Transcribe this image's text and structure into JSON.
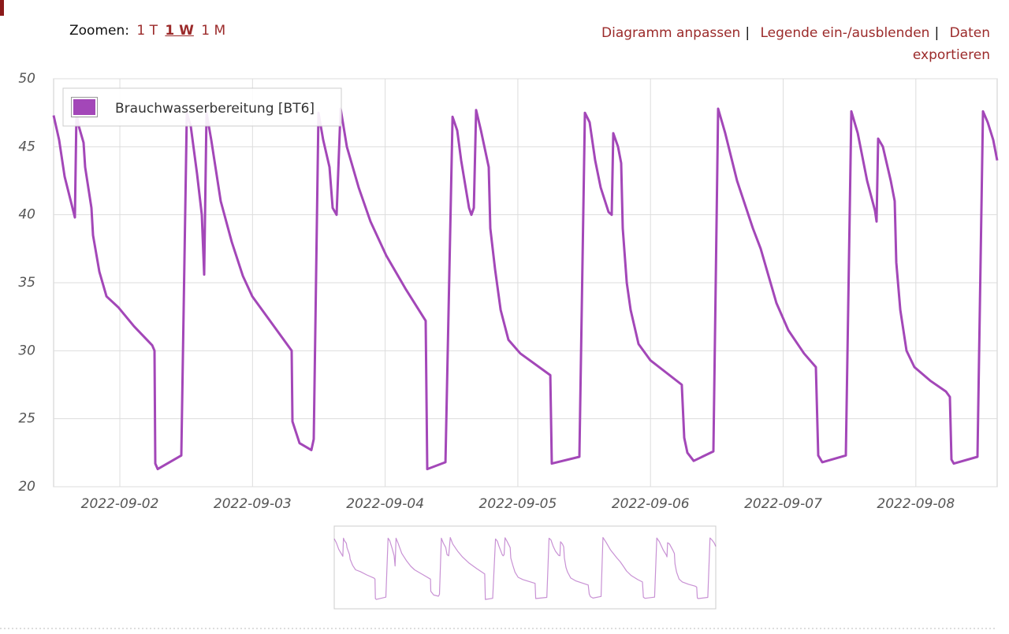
{
  "toolbar": {
    "zoom_label": "Zoomen:",
    "zoom_options": [
      "1 T",
      "1 W",
      "1 M"
    ],
    "links": [
      "Diagramm anpassen",
      "Legende ein-/ausblenden",
      "Daten exportieren"
    ],
    "separator": "|"
  },
  "chart_data": {
    "type": "line",
    "x": [
      "2022-09-01 12:01",
      "2022-09-01 13:01",
      "2022-09-01 14:01",
      "2022-09-01 15:52",
      "2022-09-01 16:09",
      "2022-09-01 16:35",
      "2022-09-01 17:26",
      "2022-09-01 17:43",
      "2022-09-01 18:52",
      "2022-09-01 19:09",
      "2022-09-01 20:18",
      "2022-09-01 21:35",
      "2022-09-01 23:43",
      "2022-09-02 02:34",
      "2022-09-02 05:51",
      "2022-09-02 06:16",
      "2022-09-02 06:25",
      "2022-09-02 06:51",
      "2022-09-02 11:07",
      "2022-09-02 12:07",
      "2022-09-02 12:50",
      "2022-09-02 13:58",
      "2022-09-02 14:50",
      "2022-09-02 15:15",
      "2022-09-02 15:41",
      "2022-09-02 16:32",
      "2022-09-02 18:15",
      "2022-09-02 20:15",
      "2022-09-02 22:15",
      "2022-09-02 23:57",
      "2022-09-03 03:31",
      "2022-09-03 07:05",
      "2022-09-03 07:14",
      "2022-09-03 08:31",
      "2022-09-03 10:39",
      "2022-09-03 11:05",
      "2022-09-03 11:56",
      "2022-09-03 12:47",
      "2022-09-03 13:56",
      "2022-09-03 14:30",
      "2022-09-03 15:13",
      "2022-09-03 15:56",
      "2022-09-03 17:04",
      "2022-09-03 19:12",
      "2022-09-03 21:21",
      "2022-09-04 00:12",
      "2022-09-04 03:46",
      "2022-09-04 07:20",
      "2022-09-04 07:37",
      "2022-09-04 10:54",
      "2022-09-04 12:11",
      "2022-09-04 13:02",
      "2022-09-04 13:45",
      "2022-09-04 15:10",
      "2022-09-04 15:36",
      "2022-09-04 16:02",
      "2022-09-04 16:27",
      "2022-09-04 17:19",
      "2022-09-04 18:44",
      "2022-09-04 19:01",
      "2022-09-04 19:53",
      "2022-09-04 20:53",
      "2022-09-04 22:18",
      "2022-09-05 00:27",
      "2022-09-05 05:52",
      "2022-09-05 06:09",
      "2022-09-05 11:08",
      "2022-09-05 12:08",
      "2022-09-05 12:59",
      "2022-09-05 13:59",
      "2022-09-05 14:59",
      "2022-09-05 16:25",
      "2022-09-05 16:59",
      "2022-09-05 17:16",
      "2022-09-05 18:07",
      "2022-09-05 18:42",
      "2022-09-05 18:59",
      "2022-09-05 19:42",
      "2022-09-05 20:24",
      "2022-09-05 21:50",
      "2022-09-05 23:58",
      "2022-09-06 05:40",
      "2022-09-06 06:06",
      "2022-09-06 06:40",
      "2022-09-06 07:49",
      "2022-09-06 11:23",
      "2022-09-06 12:14",
      "2022-09-06 13:31",
      "2022-09-06 15:39",
      "2022-09-06 18:31",
      "2022-09-06 19:56",
      "2022-09-06 21:22",
      "2022-09-06 22:47",
      "2022-09-07 00:56",
      "2022-09-07 03:47",
      "2022-09-07 05:55",
      "2022-09-07 06:21",
      "2022-09-07 07:04",
      "2022-09-07 11:20",
      "2022-09-07 12:20",
      "2022-09-07 13:29",
      "2022-09-07 15:11",
      "2022-09-07 16:37",
      "2022-09-07 16:54",
      "2022-09-07 17:11",
      "2022-09-07 18:02",
      "2022-09-07 19:28",
      "2022-09-07 20:11",
      "2022-09-07 20:28",
      "2022-09-07 21:11",
      "2022-09-07 22:19",
      "2022-09-07 23:45",
      "2022-09-08 02:36",
      "2022-09-08 05:27",
      "2022-09-08 06:10",
      "2022-09-08 06:27",
      "2022-09-08 06:52",
      "2022-09-08 11:09",
      "2022-09-08 12:09",
      "2022-09-08 13:00",
      "2022-09-08 14:00",
      "2022-09-08 14:43"
    ],
    "series": [
      {
        "name": "Brauchwasserbereitung [BT6]",
        "color": "#a347b8",
        "values": [
          47.3,
          45.5,
          42.8,
          39.8,
          47.5,
          46.5,
          45.3,
          43.5,
          40.5,
          38.5,
          35.8,
          34,
          33.2,
          31.8,
          30.4,
          30,
          21.7,
          21.3,
          22.3,
          47.5,
          46.5,
          43,
          40,
          35.6,
          47.5,
          45.5,
          41,
          38,
          35.5,
          34,
          32,
          30,
          24.8,
          23.2,
          22.7,
          23.5,
          47.5,
          45.5,
          43.5,
          40.5,
          40,
          47.8,
          45,
          42,
          39.5,
          37,
          34.5,
          32.2,
          21.3,
          21.8,
          47.2,
          46.2,
          44,
          40.5,
          40,
          40.5,
          47.7,
          46.2,
          43.5,
          39,
          36,
          33,
          30.8,
          29.8,
          28.2,
          21.7,
          22.2,
          47.5,
          46.8,
          44,
          42,
          40.2,
          40,
          46,
          45,
          43.8,
          39,
          35,
          33,
          30.5,
          29.3,
          27.5,
          23.6,
          22.5,
          21.9,
          22.6,
          47.8,
          46,
          42.5,
          39,
          37.5,
          35.5,
          33.5,
          31.5,
          29.8,
          28.8,
          22.3,
          21.8,
          22.3,
          47.6,
          46,
          42.5,
          40.3,
          39.5,
          45.6,
          45,
          42.5,
          41,
          36.5,
          33,
          30,
          28.8,
          27.8,
          27,
          26.6,
          22,
          21.7,
          22.2,
          47.6,
          46.8,
          45.5,
          44
        ]
      }
    ],
    "xlim": [
      "2022-09-01 12:01",
      "2022-09-08 14:43"
    ],
    "xticks": [
      "2022-09-02",
      "2022-09-03",
      "2022-09-04",
      "2022-09-05",
      "2022-09-06",
      "2022-09-07",
      "2022-09-08"
    ],
    "ylim": [
      20,
      50
    ],
    "yticks": [
      20,
      25,
      30,
      35,
      40,
      45,
      50
    ],
    "grid": true,
    "legend": "top-left"
  }
}
